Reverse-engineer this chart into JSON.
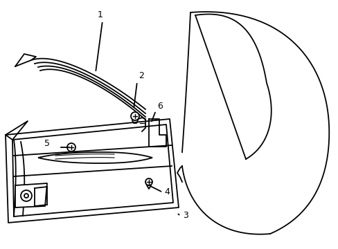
{
  "background_color": "#ffffff",
  "line_color": "#000000",
  "line_width": 1.3,
  "figsize": [
    4.89,
    3.6
  ],
  "dpi": 100
}
